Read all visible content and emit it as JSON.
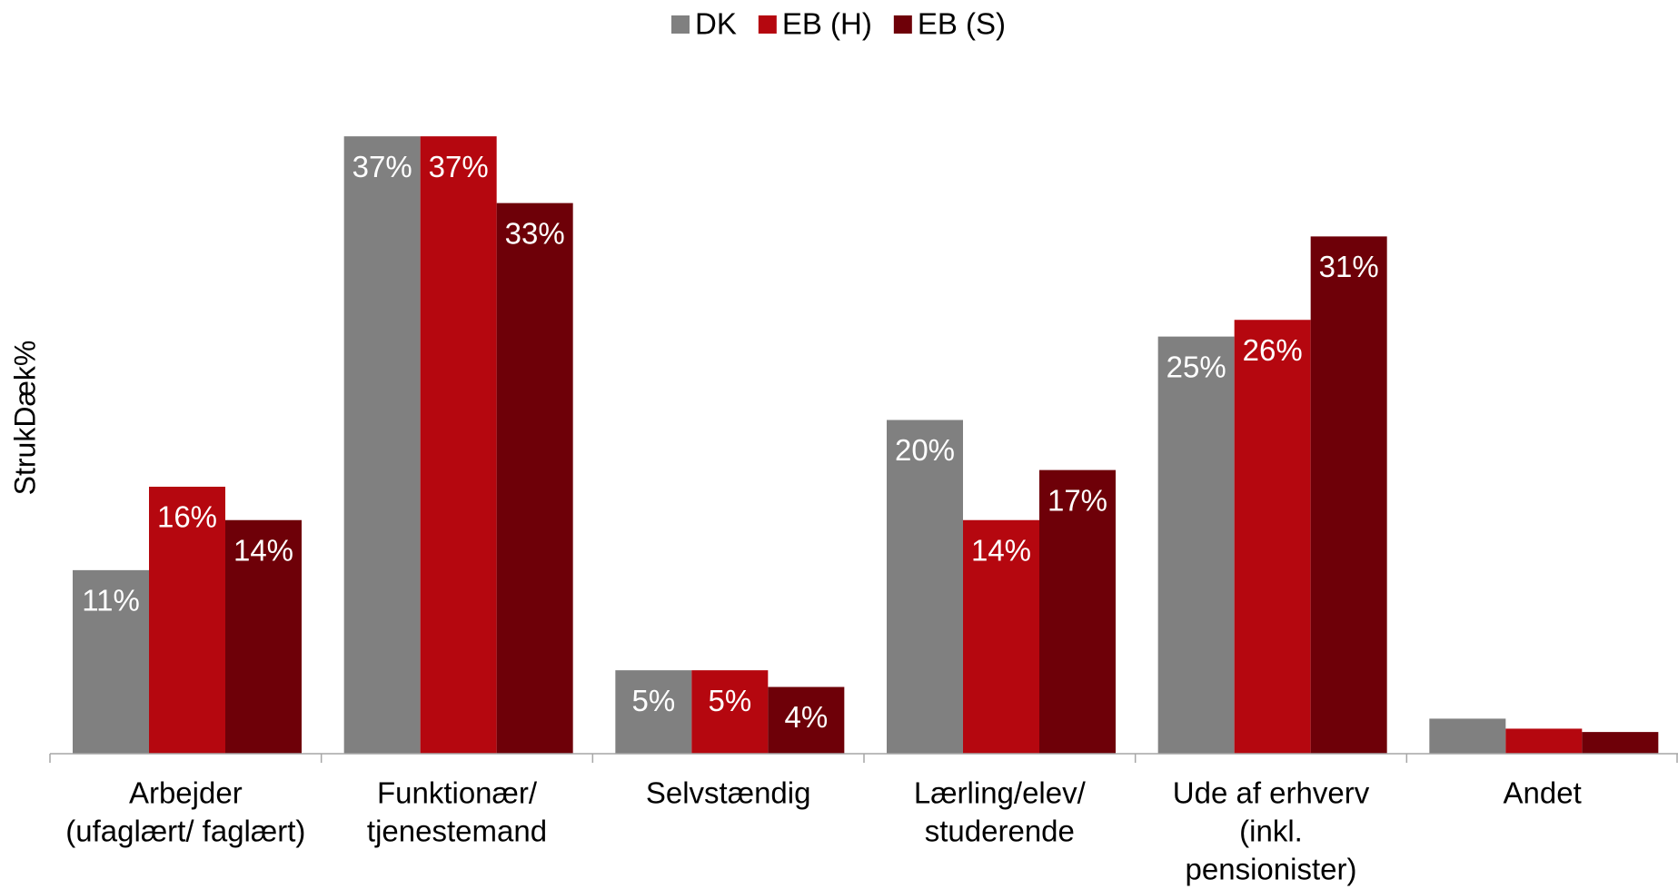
{
  "chart_data": {
    "type": "bar",
    "y_label": "StrukDæk%",
    "categories": [
      [
        "Arbejder",
        "(ufaglært/ faglært)"
      ],
      [
        "Funktionær/",
        "tjenestemand"
      ],
      [
        "Selvstændig"
      ],
      [
        "Lærling/elev/",
        "studerende"
      ],
      [
        "Ude af erhverv",
        "(inkl.",
        "pensionister)"
      ],
      [
        "Andet"
      ]
    ],
    "series": [
      {
        "name": "DK",
        "color": "#808080",
        "values": [
          11,
          37,
          5,
          20,
          25,
          2.1
        ],
        "value_labels": [
          "11%",
          "37%",
          "5%",
          "20%",
          "25%",
          null
        ]
      },
      {
        "name": "EB (H)",
        "color": "#b5070f",
        "values": [
          16,
          37,
          5,
          14,
          26,
          1.5
        ],
        "value_labels": [
          "16%",
          "37%",
          "5%",
          "14%",
          "26%",
          null
        ]
      },
      {
        "name": "EB (S)",
        "color": "#6e0008",
        "values": [
          14,
          33,
          4,
          17,
          31,
          1.3
        ],
        "value_labels": [
          "14%",
          "33%",
          "4%",
          "17%",
          "31%",
          null
        ]
      }
    ],
    "ylim": [
      0,
      40
    ],
    "legend": "top"
  }
}
